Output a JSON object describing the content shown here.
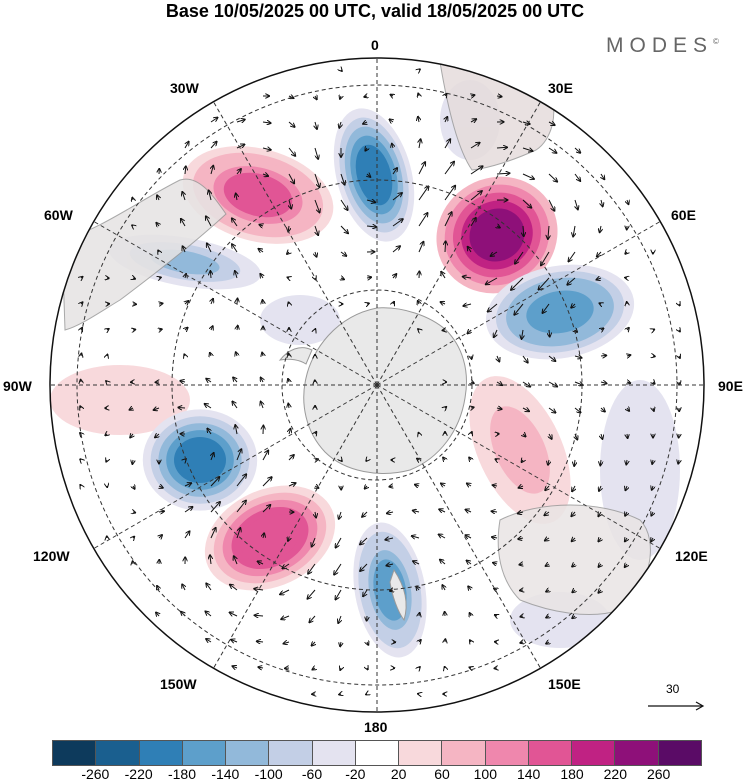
{
  "title": "Base 10/05/2025 00 UTC, valid 18/05/2025 00 UTC",
  "brand": "MODES",
  "brand_mark": "©",
  "longitude_labels": {
    "top": "0",
    "top_left": "30W",
    "top_right": "30E",
    "upper_left": "60W",
    "upper_right": "60E",
    "left": "90W",
    "right": "90E",
    "lower_left": "120W",
    "lower_right": "120E",
    "bottom_left": "150W",
    "bottom_right": "150E",
    "bottom": "180"
  },
  "reference_vector_label": "30",
  "colorbar": {
    "ticks": [
      "-260",
      "-220",
      "-180",
      "-140",
      "-100",
      "-60",
      "-20",
      "20",
      "60",
      "100",
      "140",
      "180",
      "220",
      "260"
    ],
    "colors": [
      "#0d3a5c",
      "#1a5f8f",
      "#2f7fb6",
      "#5d9fcb",
      "#92b9da",
      "#c3cfe6",
      "#e4e3f0",
      "#ffffff",
      "#f8d9dc",
      "#f5b5c3",
      "#ef87ad",
      "#e15595",
      "#c02283",
      "#8e1079",
      "#5a0b66"
    ]
  },
  "map_data": {
    "projection": "south-polar-stereographic",
    "anomalies": [
      {
        "name": "atlantic-south-low",
        "value": -200
      },
      {
        "name": "east-atlantic-high",
        "value": 160
      },
      {
        "name": "indian-ocean-high",
        "value": 260
      },
      {
        "name": "south-indian-low",
        "value": -160
      },
      {
        "name": "south-pacific-low-east",
        "value": -190
      },
      {
        "name": "south-pacific-high",
        "value": 180
      },
      {
        "name": "new-zealand-low",
        "value": -140
      },
      {
        "name": "australia-high",
        "value": 90
      },
      {
        "name": "drake-passage-low",
        "value": -110
      }
    ]
  }
}
